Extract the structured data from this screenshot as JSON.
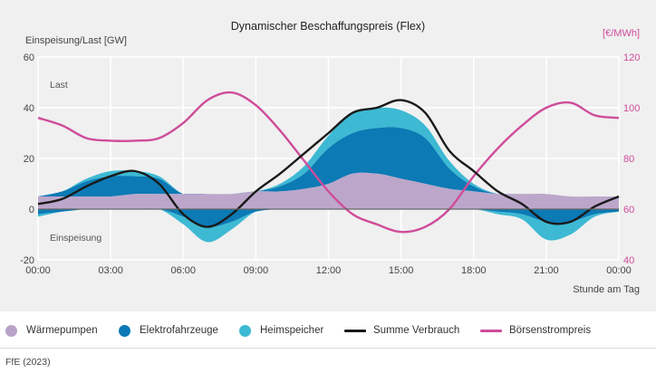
{
  "chart_data": {
    "type": "area",
    "title": "Dynamischer Beschaffungspreis (Flex)",
    "xlabel": "Stunde am Tag",
    "ylabel_left": "Einspeisung/Last [GW]",
    "ylabel_right": "[€/MWh]",
    "ylim_left": [
      -20,
      60
    ],
    "ylim_right": [
      40,
      120
    ],
    "yticks_left": [
      -20,
      0,
      20,
      40,
      60
    ],
    "yticks_right": [
      40,
      60,
      80,
      100,
      120
    ],
    "xlim": [
      0,
      24
    ],
    "xticks": [
      0,
      3,
      6,
      9,
      12,
      15,
      18,
      21,
      24
    ],
    "xtick_labels": [
      "00:00",
      "03:00",
      "06:00",
      "09:00",
      "12:00",
      "15:00",
      "18:00",
      "21:00",
      "00:00"
    ],
    "annotations": {
      "top": "Last",
      "bottom": "Einspeisung"
    },
    "x": [
      0,
      1,
      2,
      3,
      4,
      5,
      6,
      7,
      8,
      9,
      10,
      11,
      12,
      13,
      14,
      15,
      16,
      17,
      18,
      19,
      20,
      21,
      22,
      23,
      24
    ],
    "series": [
      {
        "name": "Wärmepumpen",
        "color": "#b8a2c8",
        "axis": "left",
        "values": [
          5,
          5,
          5,
          5,
          6,
          6,
          6,
          6,
          6,
          7,
          7,
          8,
          10,
          14,
          14,
          12,
          10,
          8,
          7,
          6,
          6,
          6,
          5,
          5,
          5
        ]
      },
      {
        "name": "Elektrofahrzeuge",
        "color": "#0b7ab5",
        "axis": "left",
        "pos": [
          0,
          2,
          6,
          8,
          7,
          6,
          0,
          0,
          0,
          0,
          2,
          6,
          14,
          16,
          18,
          20,
          18,
          8,
          2,
          0,
          0,
          0,
          0,
          0,
          0
        ],
        "neg": [
          -2,
          -1,
          0,
          0,
          0,
          0,
          -3,
          -7,
          -5,
          -1,
          0,
          0,
          0,
          0,
          0,
          0,
          0,
          0,
          0,
          -1,
          -2,
          -5,
          -5,
          -2,
          -1
        ]
      },
      {
        "name": "Heimspeicher",
        "color": "#3db9d3",
        "axis": "left",
        "pos": [
          0,
          0,
          1,
          2,
          2,
          1,
          0,
          0,
          0,
          0,
          1,
          3,
          5,
          8,
          8,
          7,
          5,
          3,
          1,
          0,
          0,
          0,
          0,
          0,
          0
        ],
        "neg": [
          -1,
          0,
          0,
          0,
          0,
          0,
          -3,
          -6,
          -3,
          0,
          0,
          0,
          0,
          0,
          0,
          0,
          0,
          0,
          0,
          -1,
          -2,
          -7,
          -5,
          -1,
          0
        ]
      },
      {
        "name": "Summe Verbrauch",
        "color": "#1a1a1a",
        "axis": "left",
        "values": [
          2,
          4,
          9,
          13,
          15,
          10,
          -2,
          -7,
          -2,
          7,
          14,
          22,
          30,
          38,
          40,
          43,
          38,
          23,
          15,
          7,
          2,
          -5,
          -5,
          1,
          5
        ]
      },
      {
        "name": "Börsenstrompreis",
        "color": "#cf4c9a",
        "axis": "right",
        "values": [
          96,
          93,
          88,
          87,
          87,
          88,
          94,
          103,
          106,
          101,
          91,
          79,
          67,
          58,
          54,
          51,
          53,
          60,
          73,
          84,
          93,
          100,
          102,
          97,
          96
        ]
      }
    ]
  },
  "legend": [
    "Wärmepumpen",
    "Elektrofahrzeuge",
    "Heimspeicher",
    "Summe Verbrauch",
    "Börsenstrompreis"
  ],
  "source": "FfE (2023)"
}
